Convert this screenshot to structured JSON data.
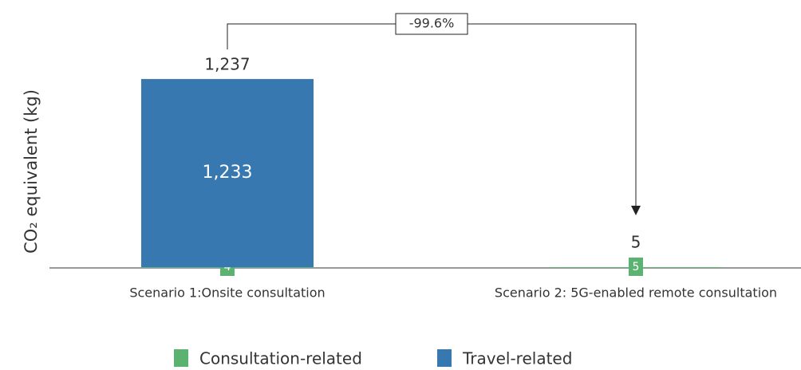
{
  "chart_data": {
    "type": "stacked_bar",
    "y_axis_label": "CO₂ equivalent  (kg)",
    "categories": [
      "Scenario 1:Onsite consultation",
      "Scenario 2: 5G-enabled remote consultation"
    ],
    "series": [
      {
        "name": "Consultation-related",
        "color": "#5cb270",
        "values": [
          4,
          5
        ]
      },
      {
        "name": "Travel-related",
        "color": "#3778b0",
        "values": [
          1233,
          null
        ],
        "value_labels": [
          "1,233",
          null
        ]
      }
    ],
    "totals": [
      1237,
      5
    ],
    "total_labels": [
      "1,237",
      "5"
    ],
    "annotation": "-99.6%",
    "ylim": [
      0,
      1650
    ],
    "legend": "bottom"
  }
}
